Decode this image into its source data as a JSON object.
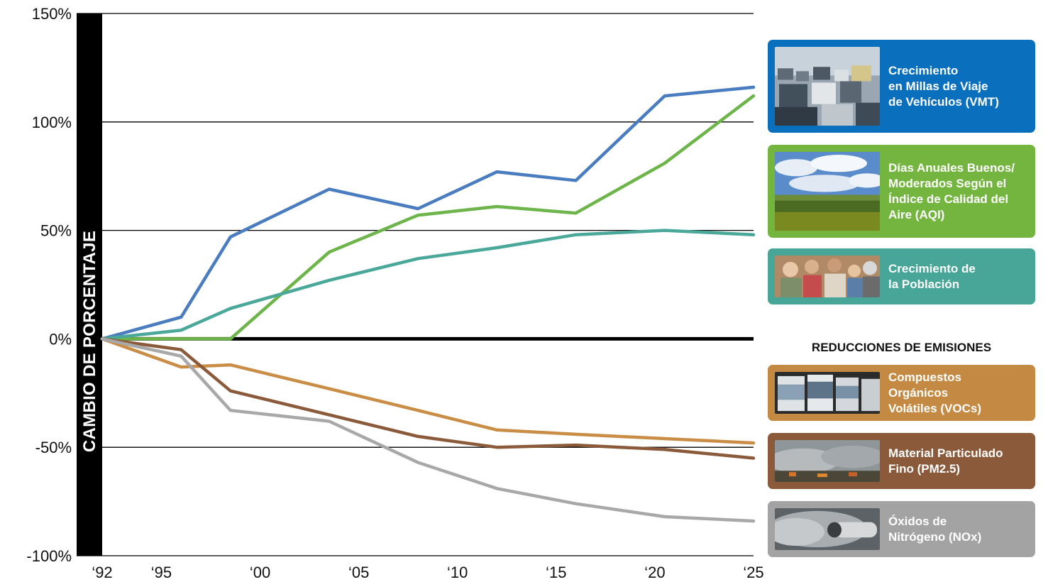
{
  "chart_data": {
    "type": "line",
    "ylabel": "CAMBIO DE PORCENTAJE",
    "ylim": [
      -100,
      150
    ],
    "yticks": [
      150,
      100,
      50,
      0,
      -50,
      -100
    ],
    "ytick_labels": [
      "150%",
      "100%",
      "50%",
      "0%",
      "-50%",
      "-100%"
    ],
    "xlim": [
      1992,
      2025
    ],
    "xticks": [
      1992,
      1995,
      2000,
      2005,
      2010,
      2015,
      2020,
      2025
    ],
    "xtick_labels": [
      "‘92",
      "‘95",
      "‘00",
      "‘05",
      "‘10",
      "‘15",
      "‘20",
      "‘25"
    ],
    "grid": "horizontal",
    "legend_position": "right",
    "series": [
      {
        "name": "Crecimiento en Millas de Viaje de Vehículos (VMT)",
        "color": "#4a7cc0",
        "points": [
          [
            1992,
            0
          ],
          [
            1996,
            10
          ],
          [
            1998.5,
            47
          ],
          [
            2003.5,
            69
          ],
          [
            2008,
            60
          ],
          [
            2012,
            77
          ],
          [
            2016,
            73
          ],
          [
            2020.5,
            112
          ],
          [
            2025,
            116
          ]
        ]
      },
      {
        "name": "Días Anuales Buenos/ Moderados Según el Índice de Calidad del Aire (AQI)",
        "color": "#6db54a",
        "points": [
          [
            1992,
            0
          ],
          [
            1998.5,
            0
          ],
          [
            2003.5,
            40
          ],
          [
            2008,
            57
          ],
          [
            2012,
            61
          ],
          [
            2016,
            58
          ],
          [
            2020.5,
            81
          ],
          [
            2025,
            112
          ]
        ]
      },
      {
        "name": "Crecimiento de la Población",
        "color": "#4aa89a",
        "points": [
          [
            1992,
            0
          ],
          [
            1996,
            4
          ],
          [
            1998.5,
            14
          ],
          [
            2003.5,
            27
          ],
          [
            2008,
            37
          ],
          [
            2012,
            42
          ],
          [
            2016,
            48
          ],
          [
            2020.5,
            50
          ],
          [
            2025,
            48
          ]
        ]
      },
      {
        "name": "Compuestos Orgánicos Volátiles (VOCs)",
        "color": "#c98d45",
        "points": [
          [
            1992,
            0
          ],
          [
            1996,
            -13
          ],
          [
            1998.5,
            -12
          ],
          [
            2003.5,
            -23
          ],
          [
            2008,
            -33
          ],
          [
            2012,
            -42
          ],
          [
            2016,
            -44
          ],
          [
            2020.5,
            -46
          ],
          [
            2025,
            -48
          ]
        ]
      },
      {
        "name": "Material Particulado Fino (PM2.5)",
        "color": "#8a5a3b",
        "points": [
          [
            1992,
            0
          ],
          [
            1996,
            -5
          ],
          [
            1998.5,
            -24
          ],
          [
            2003.5,
            -35
          ],
          [
            2008,
            -45
          ],
          [
            2012,
            -50
          ],
          [
            2016,
            -49
          ],
          [
            2020.5,
            -51
          ],
          [
            2025,
            -55
          ]
        ]
      },
      {
        "name": "Óxidos de Nitrógeno (NOx)",
        "color": "#a8a8a8",
        "points": [
          [
            1992,
            0
          ],
          [
            1996,
            -8
          ],
          [
            1998.5,
            -33
          ],
          [
            2003.5,
            -38
          ],
          [
            2008,
            -57
          ],
          [
            2012,
            -69
          ],
          [
            2016,
            -76
          ],
          [
            2020.5,
            -82
          ],
          [
            2025,
            -84
          ]
        ]
      }
    ]
  },
  "legend": {
    "emissions_heading": "REDUCCIONES DE EMISIONES",
    "items": [
      {
        "label": "Crecimiento\nen Millas de Viaje\nde Vehículos (VMT)",
        "color": "#0a6fbd",
        "icon": "traffic-photo"
      },
      {
        "label": "Días Anuales Buenos/\nModerados Según el\nÍndice de Calidad del\nAire (AQI)",
        "color": "#74b53f",
        "icon": "sky-field-photo"
      },
      {
        "label": "Crecimiento de\nla Población",
        "color": "#47a697",
        "icon": "family-photo"
      },
      {
        "label": "Compuestos\nOrgánicos\nVolátiles (VOCs)",
        "color": "#c48a44",
        "icon": "paint-cans-photo"
      },
      {
        "label": "Material Particulado\nFino (PM2.5)",
        "color": "#8a5a3a",
        "icon": "smoke-fire-photo"
      },
      {
        "label": "Óxidos de\nNitrógeno (NOx)",
        "color": "#a3a3a3",
        "icon": "exhaust-pipe-photo"
      }
    ]
  }
}
